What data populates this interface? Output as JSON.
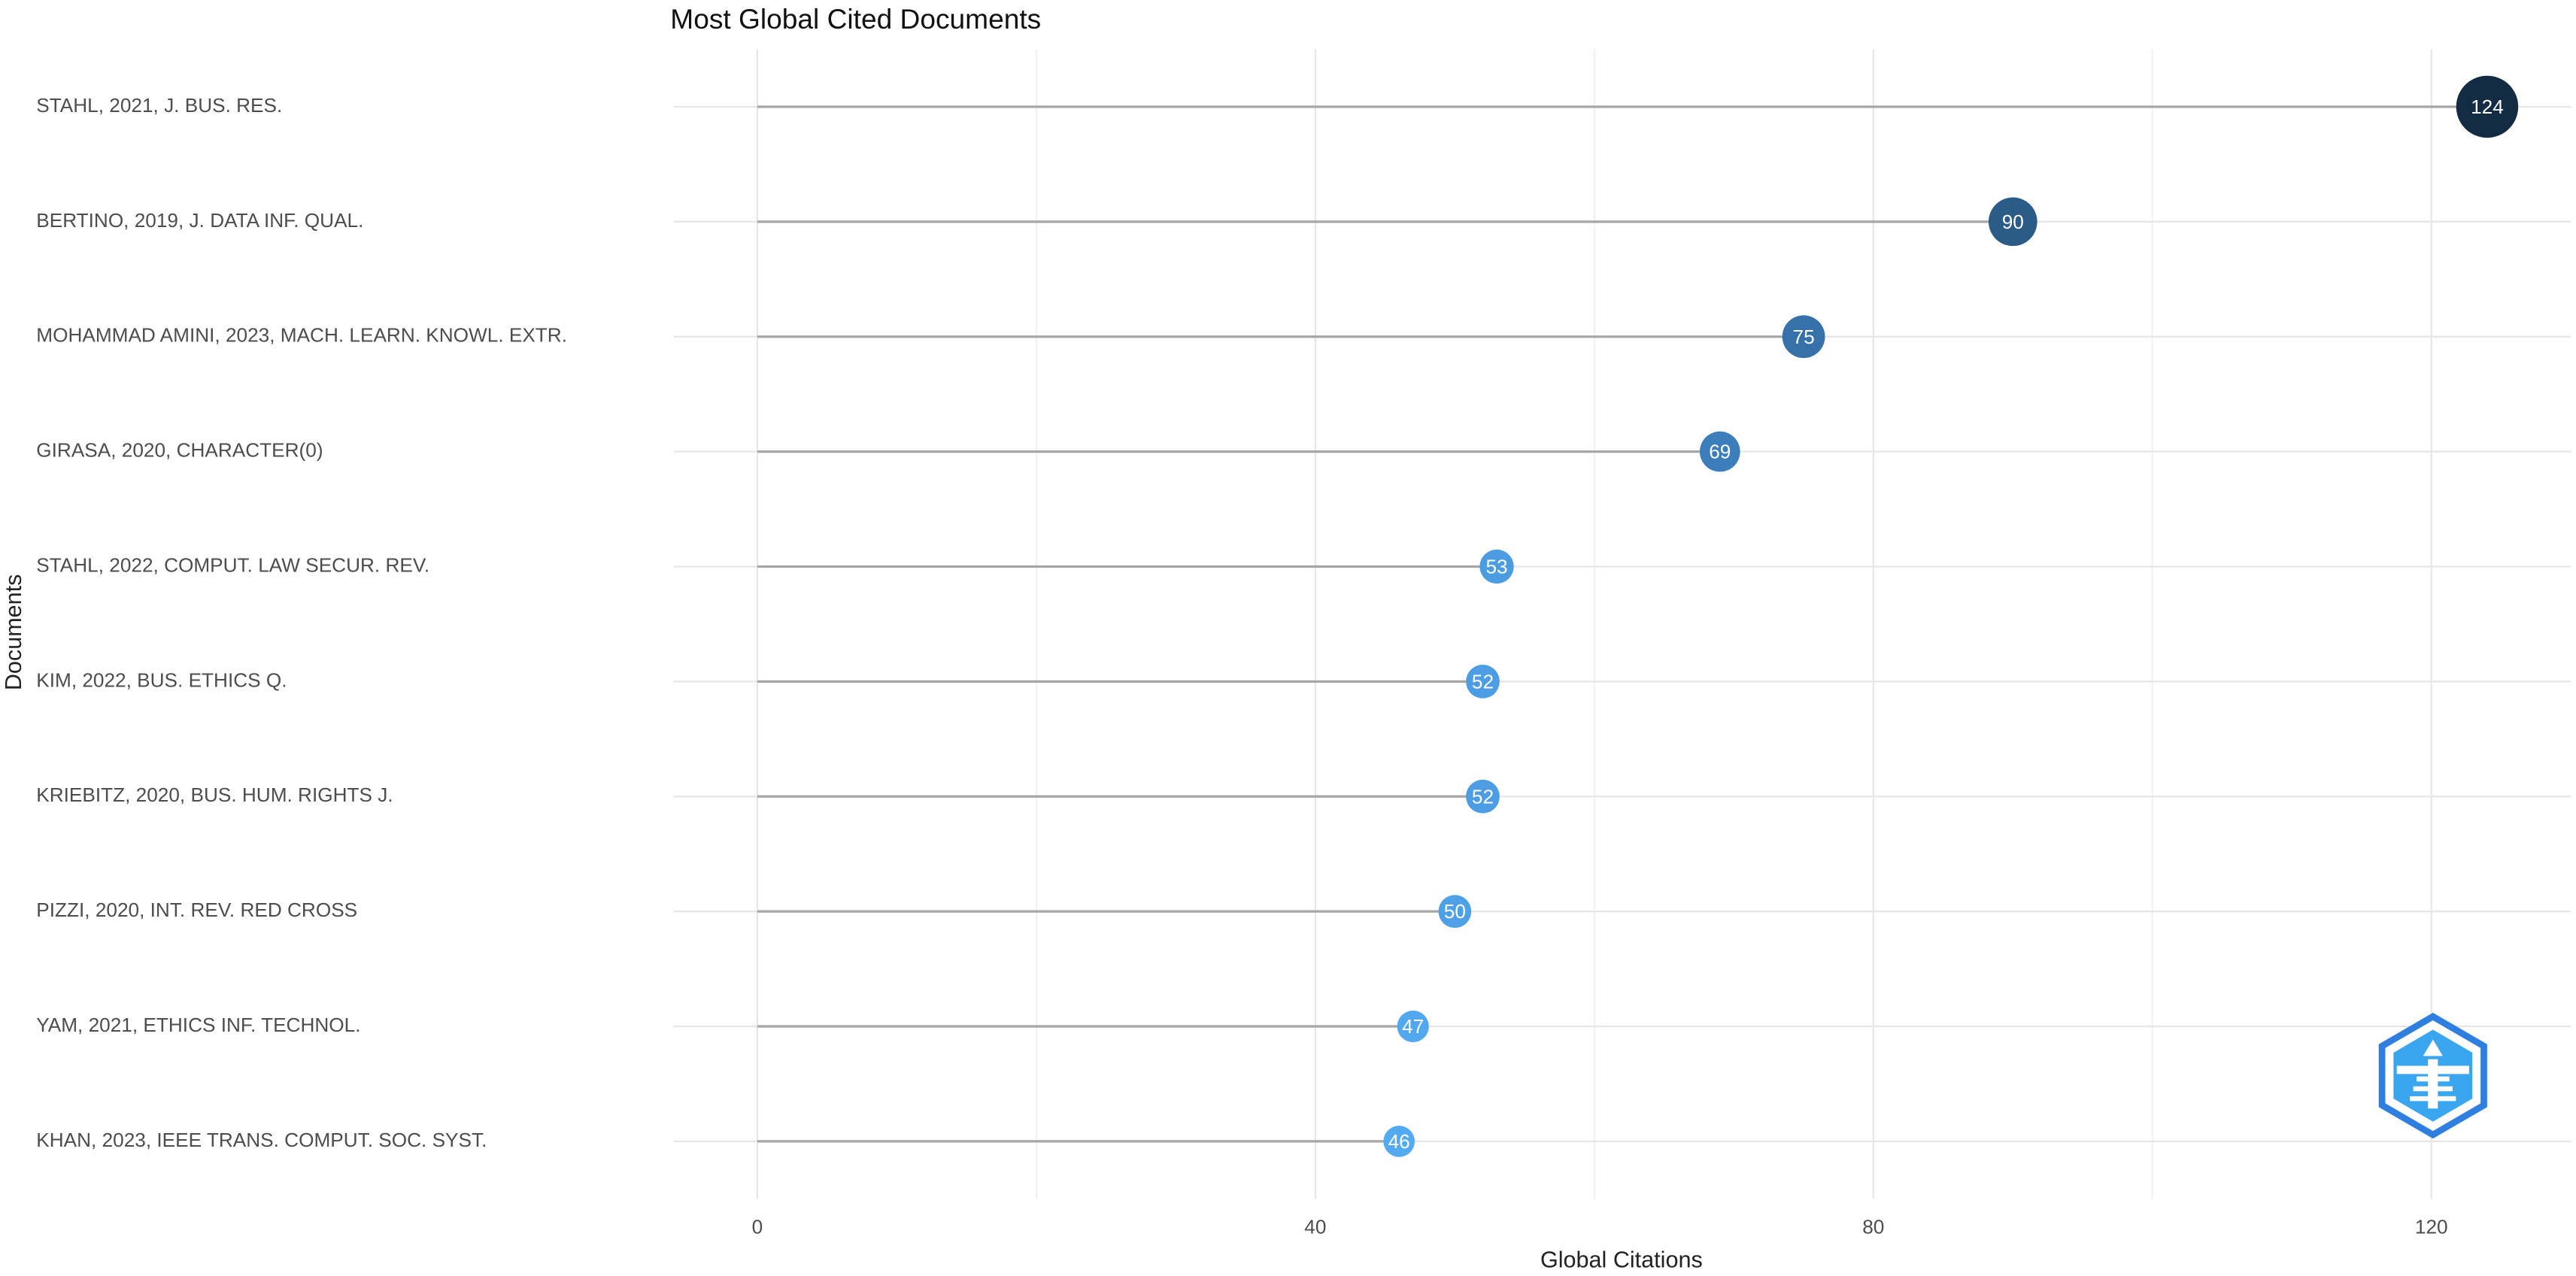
{
  "chart_data": {
    "type": "lollipop",
    "title": "Most Global Cited Documents",
    "x_label": "Global Citations",
    "y_label": "Documents",
    "categories": [
      "STAHL, 2021, J. BUS. RES.",
      "BERTINO, 2019, J. DATA INF. QUAL.",
      "MOHAMMAD AMINI, 2023, MACH. LEARN. KNOWL. EXTR.",
      "GIRASA, 2020, CHARACTER(0)",
      "STAHL, 2022, COMPUT. LAW SECUR. REV.",
      "KIM, 2022, BUS. ETHICS Q.",
      "KRIEBITZ, 2020, BUS. HUM. RIGHTS J.",
      "PIZZI, 2020, INT. REV. RED CROSS",
      "YAM, 2021, ETHICS INF. TECHNOL.",
      "KHAN, 2023, IEEE TRANS. COMPUT. SOC. SYST."
    ],
    "values": [
      124,
      90,
      75,
      69,
      53,
      52,
      52,
      50,
      47,
      46
    ],
    "colors": [
      "#132b43",
      "#2b5c88",
      "#3672a9",
      "#3b7ebb",
      "#4b9ce1",
      "#4c9de3",
      "#4c9de3",
      "#4ea1e7",
      "#52a8ef",
      "#53aaf1"
    ],
    "stem_color": "#a6a6a6",
    "xlim": [
      -6,
      130
    ],
    "xticks": [
      0,
      40,
      80,
      120
    ],
    "minor_xticks": [
      20,
      60,
      100
    ],
    "grid": true
  }
}
